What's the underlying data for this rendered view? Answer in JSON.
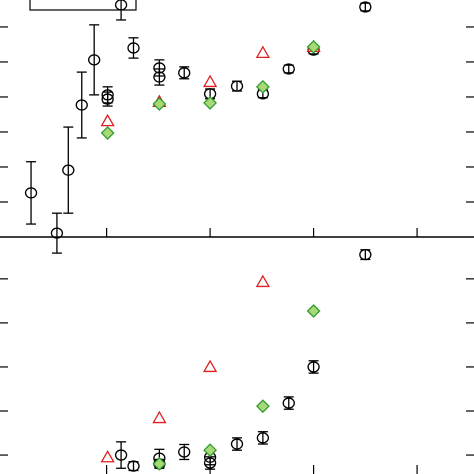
{
  "chart_data": [
    {
      "type": "scatter",
      "xlim": [
        -0.03,
        4.55
      ],
      "xticks": [
        1,
        2,
        3,
        4
      ],
      "ylim": [
        0,
        6.77
      ],
      "yticks": [
        1,
        2,
        3,
        4,
        5,
        6
      ],
      "series": [
        {
          "marker": "circle",
          "color": "#000000",
          "x": [
            0.27,
            0.52,
            0.63,
            0.76,
            0.88,
            1.01,
            1.01,
            1.14,
            1.26,
            1.51,
            1.51,
            1.75,
            2.0,
            2.26,
            2.51,
            2.76,
            3.0,
            3.5
          ],
          "values": [
            1.26,
            0.11,
            1.91,
            3.77,
            5.06,
            4.06,
            3.94,
            6.63,
            5.4,
            4.83,
            4.57,
            4.69,
            4.09,
            4.31,
            4.09,
            4.8,
            5.34,
            6.57
          ],
          "errors": [
            0.89,
            0.57,
            1.23,
            0.94,
            1.0,
            0.23,
            0.2,
            0.43,
            0.29,
            0.23,
            0.23,
            0.17,
            0.14,
            0.14,
            0.11,
            0.11,
            0.11,
            0.11
          ]
        },
        {
          "marker": "triangle",
          "color": "#e02020",
          "x": [
            1.01,
            1.51,
            2.0,
            2.51,
            3.0
          ],
          "values": [
            3.31,
            3.86,
            4.43,
            5.26,
            5.43
          ]
        },
        {
          "marker": "diamond",
          "color": "#2e9e2e",
          "x": [
            1.01,
            1.51,
            2.0,
            2.51,
            3.0
          ],
          "values": [
            2.97,
            3.8,
            3.83,
            4.29,
            5.43
          ]
        }
      ]
    },
    {
      "type": "scatter",
      "xlim": [
        -0.03,
        4.55
      ],
      "xticks": [
        1,
        2,
        3,
        4
      ],
      "ylim": [
        0.57,
        5.95
      ],
      "yticks": [
        1,
        2,
        3,
        4,
        5
      ],
      "series": [
        {
          "marker": "circle",
          "color": "#000000",
          "x": [
            1.14,
            1.26,
            1.51,
            1.51,
            1.75,
            2.0,
            2.0,
            2.26,
            2.51,
            2.76,
            3.0,
            3.5
          ],
          "values": [
            1.0,
            0.75,
            0.93,
            0.8,
            1.07,
            0.95,
            0.82,
            1.25,
            1.39,
            2.18,
            3.0,
            5.55
          ],
          "errors": [
            0.3,
            0.1,
            0.2,
            0.1,
            0.17,
            0.17,
            0.14,
            0.14,
            0.14,
            0.14,
            0.14,
            0.11
          ]
        },
        {
          "marker": "triangle",
          "color": "#e02020",
          "x": [
            1.01,
            1.51,
            2.0,
            2.51
          ],
          "values": [
            0.95,
            1.84,
            3.0,
            4.93
          ]
        },
        {
          "marker": "diamond",
          "color": "#2e9e2e",
          "x": [
            1.51,
            2.0,
            2.51,
            3.0
          ],
          "values": [
            0.8,
            1.11,
            2.11,
            4.27
          ]
        }
      ]
    }
  ]
}
